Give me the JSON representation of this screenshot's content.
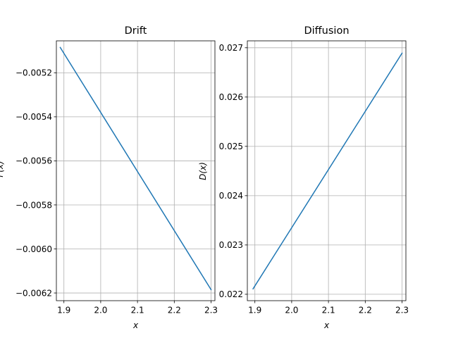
{
  "chart_data": [
    {
      "type": "line",
      "title": "Drift",
      "xlabel": "x",
      "ylabel": "F(x)",
      "xlim": [
        1.8795,
        2.3105
      ],
      "ylim": [
        -0.006235,
        -0.005055
      ],
      "xticks": [
        1.9,
        2.0,
        2.1,
        2.2,
        2.3
      ],
      "xtick_labels": [
        "1.9",
        "2.0",
        "2.1",
        "2.2",
        "2.3"
      ],
      "yticks": [
        -0.0052,
        -0.0054,
        -0.0056,
        -0.0058,
        -0.006,
        -0.0062
      ],
      "ytick_labels": [
        "−0.0052",
        "−0.0054",
        "−0.0056",
        "−0.0058",
        "−0.0060",
        "−0.0062"
      ],
      "grid": true,
      "series": [
        {
          "name": "drift",
          "color": "#1f77b4",
          "x": [
            1.89,
            2.3
          ],
          "y": [
            -0.005085,
            -0.006185
          ]
        }
      ]
    },
    {
      "type": "line",
      "title": "Diffusion",
      "xlabel": "x",
      "ylabel": "D(x)",
      "xlim": [
        1.8795,
        2.3105
      ],
      "ylim": [
        0.02187,
        0.02714
      ],
      "xticks": [
        1.9,
        2.0,
        2.1,
        2.2,
        2.3
      ],
      "xtick_labels": [
        "1.9",
        "2.0",
        "2.1",
        "2.2",
        "2.3"
      ],
      "yticks": [
        0.022,
        0.023,
        0.024,
        0.025,
        0.026,
        0.027
      ],
      "ytick_labels": [
        "0.022",
        "0.023",
        "0.024",
        "0.025",
        "0.026",
        "0.027"
      ],
      "grid": true,
      "series": [
        {
          "name": "diffusion",
          "color": "#1f77b4",
          "x": [
            1.895,
            2.3
          ],
          "y": [
            0.02211,
            0.02689
          ]
        }
      ]
    }
  ]
}
